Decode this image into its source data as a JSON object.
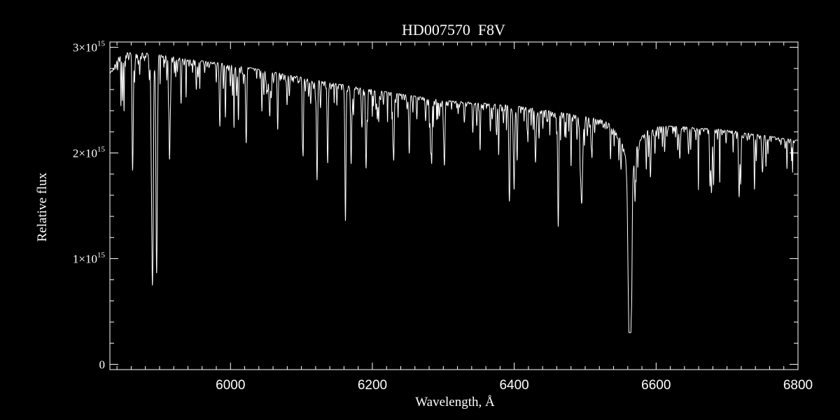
{
  "chart_data": {
    "type": "line",
    "title": "HD007570  F8V",
    "xlabel": "Wavelength, Å",
    "ylabel": "Relative flux",
    "xlim": [
      5830,
      6800
    ],
    "ylim": [
      -0.05,
      3.05
    ],
    "y_scale_label_exponent": "15",
    "grid": false,
    "legend": "none",
    "colors": {
      "background": "#000000",
      "line": "#ffffff",
      "axes": "#ffffff"
    },
    "x_ticks": [
      {
        "value": 6000,
        "label": "6000"
      },
      {
        "value": 6200,
        "label": "6200"
      },
      {
        "value": 6400,
        "label": "6400"
      },
      {
        "value": 6600,
        "label": "6600"
      },
      {
        "value": 6800,
        "label": "6800"
      }
    ],
    "y_ticks": [
      {
        "value": 0,
        "label": "0",
        "mantissa": "",
        "exp": ""
      },
      {
        "value": 1,
        "label": "1×10^15",
        "mantissa": "1×10",
        "exp": "15"
      },
      {
        "value": 2,
        "label": "2×10^15",
        "mantissa": "2×10",
        "exp": "15"
      },
      {
        "value": 3,
        "label": "3×10^15",
        "mantissa": "3×10",
        "exp": "15"
      }
    ],
    "continuum": {
      "x": [
        5830,
        5845,
        5880,
        5950,
        6000,
        6100,
        6200,
        6300,
        6400,
        6500,
        6550,
        6600,
        6700,
        6800
      ],
      "y": [
        2.75,
        2.95,
        2.95,
        2.88,
        2.84,
        2.72,
        2.6,
        2.5,
        2.45,
        2.35,
        2.32,
        2.27,
        2.22,
        2.12
      ]
    },
    "absorption_lines": [
      {
        "x": 5889.95,
        "depth": 2.17,
        "width": 1.0
      },
      {
        "x": 5895.92,
        "depth": 2.0,
        "width": 1.0
      },
      {
        "x": 5862.0,
        "depth": 1.05,
        "width": 0.8
      },
      {
        "x": 5914.0,
        "depth": 0.95,
        "width": 0.8
      },
      {
        "x": 5985.0,
        "depth": 0.6,
        "width": 0.8
      },
      {
        "x": 6022.0,
        "depth": 0.65,
        "width": 0.8
      },
      {
        "x": 6102.0,
        "depth": 0.6,
        "width": 0.8
      },
      {
        "x": 6122.0,
        "depth": 0.95,
        "width": 0.8
      },
      {
        "x": 6137.0,
        "depth": 0.75,
        "width": 0.8
      },
      {
        "x": 6162.0,
        "depth": 1.1,
        "width": 0.8
      },
      {
        "x": 6170.0,
        "depth": 0.55,
        "width": 0.8
      },
      {
        "x": 6191.0,
        "depth": 0.55,
        "width": 0.8
      },
      {
        "x": 6230.0,
        "depth": 0.6,
        "width": 0.8
      },
      {
        "x": 6252.0,
        "depth": 0.55,
        "width": 0.8
      },
      {
        "x": 6301.5,
        "depth": 0.55,
        "width": 0.8
      },
      {
        "x": 6393.0,
        "depth": 0.7,
        "width": 0.8
      },
      {
        "x": 6400.0,
        "depth": 0.55,
        "width": 0.8
      },
      {
        "x": 6430.0,
        "depth": 0.5,
        "width": 0.8
      },
      {
        "x": 6462.0,
        "depth": 1.05,
        "width": 0.8
      },
      {
        "x": 6495.0,
        "depth": 0.75,
        "width": 1.5
      },
      {
        "x": 6563.0,
        "depth": 1.93,
        "width": 2.0
      },
      {
        "x": 6592.0,
        "depth": 0.45,
        "width": 0.8
      },
      {
        "x": 6678.0,
        "depth": 0.6,
        "width": 0.8
      },
      {
        "x": 6717.0,
        "depth": 0.6,
        "width": 0.8
      },
      {
        "x": 6750.0,
        "depth": 0.35,
        "width": 0.8
      }
    ],
    "broad_wing": {
      "x": 6563.0,
      "depth": 0.55,
      "width": 12.0
    }
  }
}
